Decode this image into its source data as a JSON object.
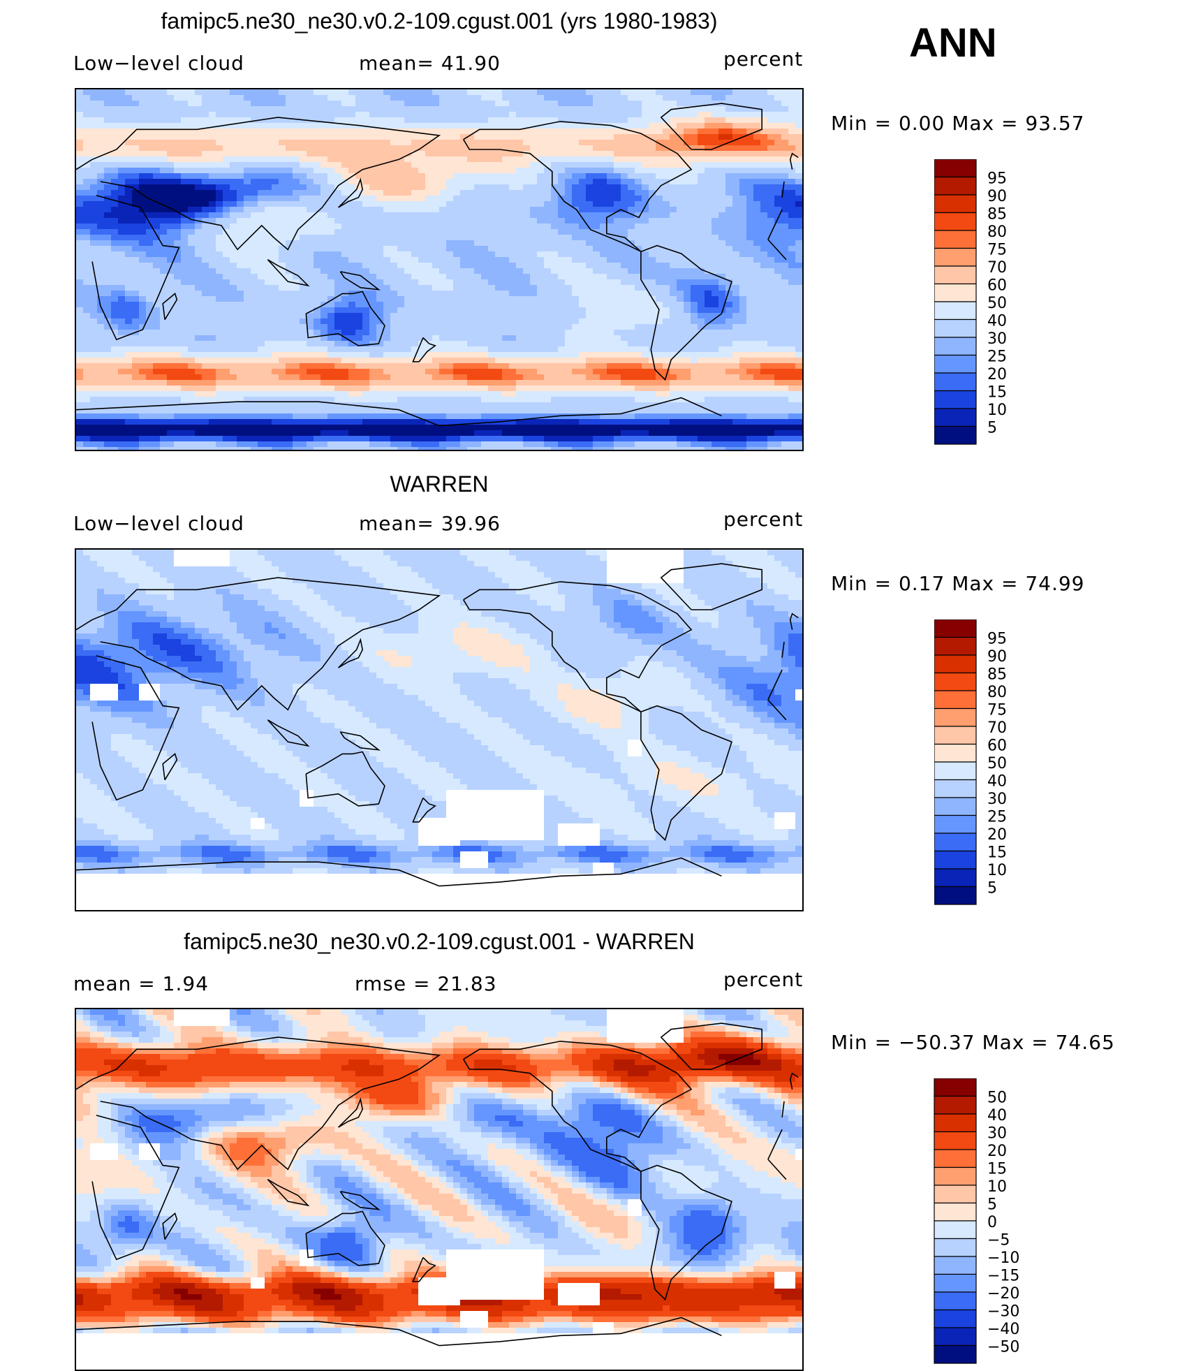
{
  "figure": {
    "season": "ANN",
    "panels": [
      {
        "title": "famipc5.ne30_ne30.v0.2-109.cgust.001 (yrs 1980-1983)",
        "left_label": "Low−level cloud",
        "center_label": "mean=   41.90",
        "right_label": "percent",
        "minmax": "Min  =      0.00  Max  =    93.57",
        "field": "model",
        "colorbar": {
          "levels": [
            "95",
            "90",
            "85",
            "80",
            "75",
            "70",
            "60",
            "50",
            "40",
            "30",
            "25",
            "20",
            "15",
            "10",
            "5"
          ],
          "colors": [
            "#870000",
            "#b31a00",
            "#d93000",
            "#f24a12",
            "#ff7038",
            "#ff9e6e",
            "#ffc6a8",
            "#ffe5d3",
            "#d6e9ff",
            "#b8d2ff",
            "#8fb5ff",
            "#6596ff",
            "#3a6cf5",
            "#1a43e0",
            "#0a24b8",
            "#000f80"
          ]
        }
      },
      {
        "title": "WARREN",
        "left_label": "Low−level cloud",
        "center_label": "mean=   39.96",
        "right_label": "percent",
        "minmax": "Min  =      0.17  Max  =    74.99",
        "field": "obs",
        "colorbar": {
          "levels": [
            "95",
            "90",
            "85",
            "80",
            "75",
            "70",
            "60",
            "50",
            "40",
            "30",
            "25",
            "20",
            "15",
            "10",
            "5"
          ],
          "colors": [
            "#870000",
            "#b31a00",
            "#d93000",
            "#f24a12",
            "#ff7038",
            "#ff9e6e",
            "#ffc6a8",
            "#ffe5d3",
            "#d6e9ff",
            "#b8d2ff",
            "#8fb5ff",
            "#6596ff",
            "#3a6cf5",
            "#1a43e0",
            "#0a24b8",
            "#000f80"
          ]
        }
      },
      {
        "title": "famipc5.ne30_ne30.v0.2-109.cgust.001 - WARREN",
        "left_label": "mean  =     1.94",
        "center_label": "rmse  =    21.83",
        "right_label": "percent",
        "minmax": "Min  = −50.37  Max  =    74.65",
        "field": "diff",
        "colorbar": {
          "levels": [
            "50",
            "40",
            "30",
            "20",
            "15",
            "10",
            "5",
            "0",
            "−5",
            "−10",
            "−15",
            "−20",
            "−30",
            "−40",
            "−50"
          ],
          "colors": [
            "#870000",
            "#b31a00",
            "#d93000",
            "#f24a12",
            "#ff7038",
            "#ff9e6e",
            "#ffc6a8",
            "#ffe5d3",
            "#d6e9ff",
            "#b8d2ff",
            "#8fb5ff",
            "#6596ff",
            "#3a6cf5",
            "#1a43e0",
            "#0a24b8",
            "#000f80"
          ]
        }
      }
    ]
  },
  "chart_data": [
    {
      "type": "heatmap",
      "title": "famipc5.ne30_ne30.v0.2-109.cgust.001 (yrs 1980-1983)",
      "variable": "Low−level cloud",
      "units": "percent",
      "mean": 41.9,
      "min": 0.0,
      "max": 93.57,
      "contour_levels": [
        5,
        10,
        15,
        20,
        25,
        30,
        40,
        50,
        60,
        70,
        75,
        80,
        85,
        90,
        95
      ]
    },
    {
      "type": "heatmap",
      "title": "WARREN",
      "variable": "Low−level cloud",
      "units": "percent",
      "mean": 39.96,
      "min": 0.17,
      "max": 74.99,
      "contour_levels": [
        5,
        10,
        15,
        20,
        25,
        30,
        40,
        50,
        60,
        70,
        75,
        80,
        85,
        90,
        95
      ]
    },
    {
      "type": "heatmap",
      "title": "famipc5.ne30_ne30.v0.2-109.cgust.001 - WARREN",
      "units": "percent",
      "mean": 1.94,
      "rmse": 21.83,
      "min": -50.37,
      "max": 74.65,
      "contour_levels": [
        -50,
        -40,
        -30,
        -20,
        -15,
        -10,
        -5,
        0,
        5,
        10,
        15,
        20,
        30,
        40,
        50
      ]
    }
  ]
}
